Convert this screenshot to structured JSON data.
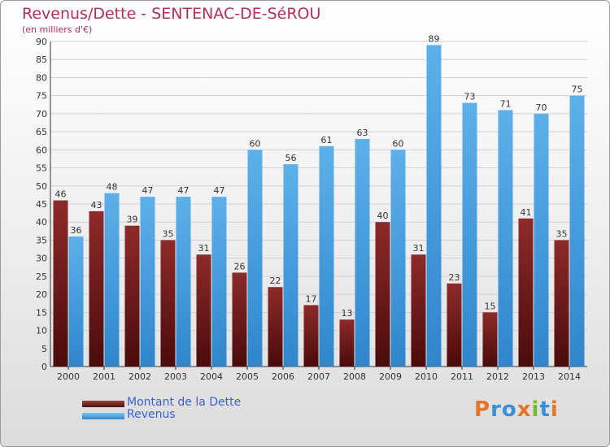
{
  "header": {
    "title": "Revenus/Dette - SENTENAC-DE-SéROU",
    "subtitle": "(en milliers d'€)"
  },
  "legend": {
    "items": [
      {
        "label": "Montant de la Dette",
        "color": "#6b1a1a"
      },
      {
        "label": "Revenus",
        "color": "#4aa3e3"
      }
    ]
  },
  "brand": {
    "logo_text": "Proxiti"
  },
  "chart_data": {
    "type": "bar",
    "categories": [
      "2000",
      "2001",
      "2002",
      "2003",
      "2004",
      "2005",
      "2006",
      "2007",
      "2008",
      "2009",
      "2010",
      "2011",
      "2012",
      "2013",
      "2014"
    ],
    "series": [
      {
        "name": "Montant de la Dette",
        "color": "#6b1a1a",
        "values": [
          46,
          43,
          39,
          35,
          31,
          26,
          22,
          17,
          13,
          40,
          31,
          23,
          15,
          41,
          35
        ]
      },
      {
        "name": "Revenus",
        "color": "#4aa3e3",
        "values": [
          36,
          48,
          47,
          47,
          47,
          60,
          56,
          61,
          63,
          60,
          89,
          73,
          71,
          70,
          75
        ]
      }
    ],
    "ylim": [
      0,
      90
    ],
    "yticks": [
      0,
      5,
      10,
      15,
      20,
      25,
      30,
      35,
      40,
      45,
      50,
      55,
      60,
      65,
      70,
      75,
      80,
      85,
      90
    ],
    "grid": true
  }
}
